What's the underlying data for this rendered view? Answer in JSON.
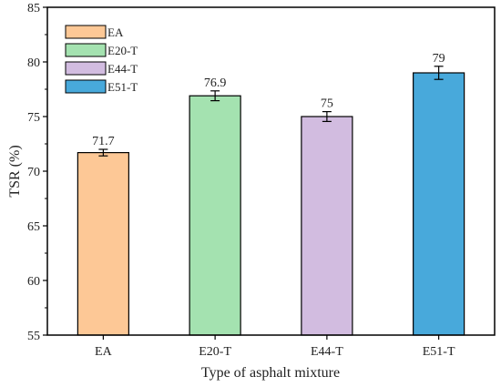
{
  "chart_data": {
    "type": "bar",
    "title": "",
    "xlabel": "Type of asphalt mixture",
    "ylabel": "TSR (%)",
    "categories": [
      "EA",
      "E20-T",
      "E44-T",
      "E51-T"
    ],
    "values": [
      71.7,
      76.9,
      75,
      79
    ],
    "value_labels": [
      "71.7",
      "76.9",
      "75",
      "79"
    ],
    "error": [
      0.3,
      0.45,
      0.45,
      0.6
    ],
    "colors": [
      "#fdc896",
      "#a4e2b0",
      "#d2bce0",
      "#48a9db"
    ],
    "ylim": [
      55,
      85
    ],
    "yticks": [
      55,
      60,
      65,
      70,
      75,
      80,
      85
    ],
    "legend": {
      "placement": "top-left",
      "entries": [
        "EA",
        "E20-T",
        "E44-T",
        "E51-T"
      ]
    },
    "grid": false
  }
}
